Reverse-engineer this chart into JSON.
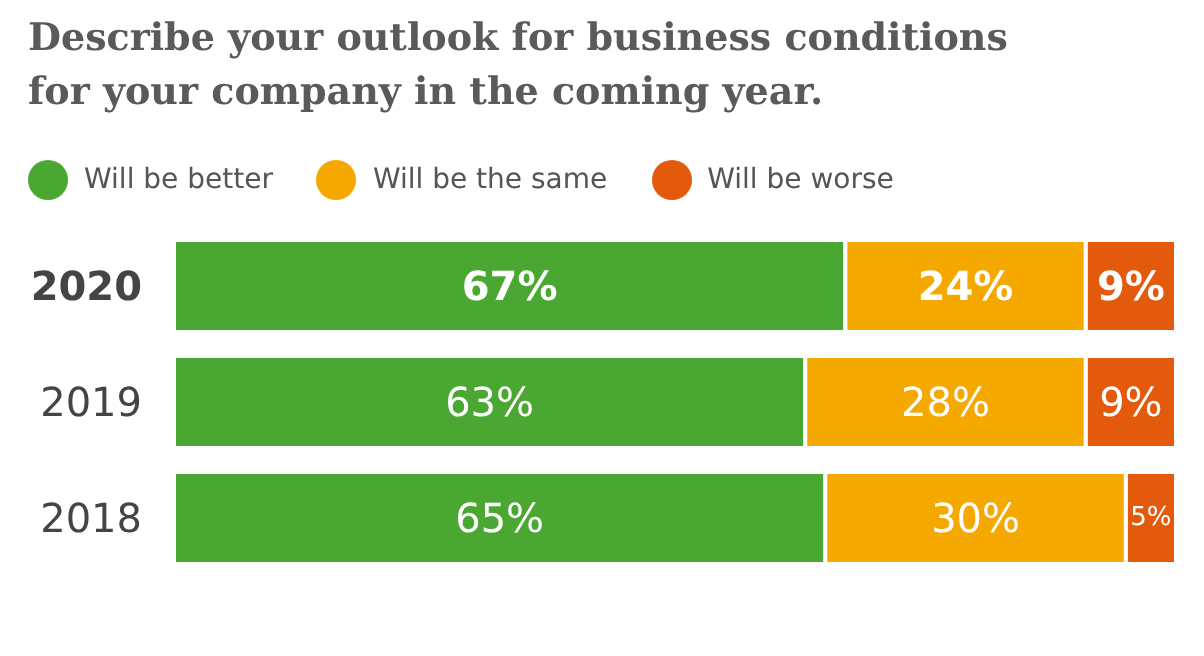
{
  "chart_data": {
    "type": "bar",
    "orientation": "horizontal",
    "stacked": true,
    "title": "Describe your outlook for business conditions for your company in the coming year.",
    "categories": [
      "2020",
      "2019",
      "2018"
    ],
    "legend": "top left",
    "series": [
      {
        "name": "Will be better",
        "color": "#4aa832",
        "values": [
          67,
          63,
          65
        ],
        "value_labels": [
          "67%",
          "63%",
          "65%"
        ]
      },
      {
        "name": "Will be the same",
        "color": "#f5a800",
        "values": [
          24,
          28,
          30
        ],
        "value_labels": [
          "24%",
          "28%",
          "30%"
        ]
      },
      {
        "name": "Will be worse",
        "color": "#e35a0c",
        "values": [
          9,
          9,
          5
        ],
        "value_labels": [
          "9%",
          "9%",
          "5%"
        ]
      }
    ]
  }
}
